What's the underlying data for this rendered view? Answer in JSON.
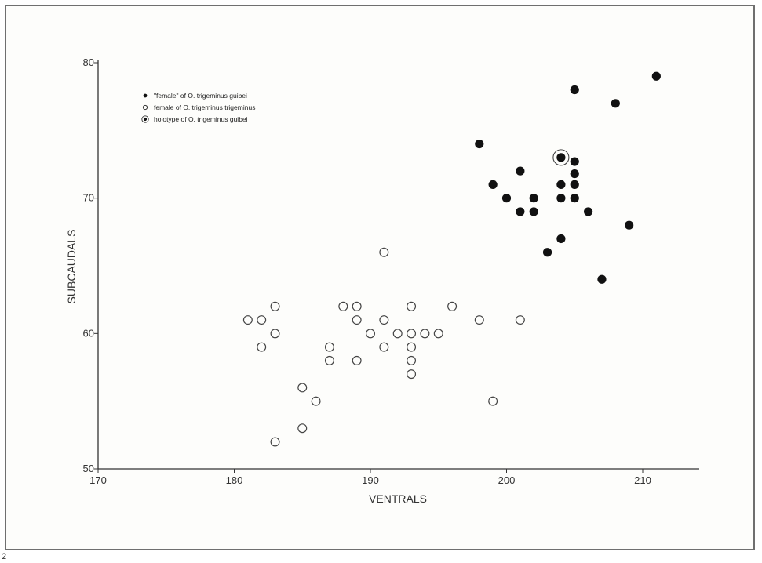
{
  "figure_number": "2",
  "chart_data": {
    "type": "scatter",
    "title": "",
    "xlabel": "VENTRALS",
    "ylabel": "SUBCAUDALS",
    "xlim": [
      170,
      215
    ],
    "ylim": [
      50,
      80
    ],
    "xticks": [
      170,
      180,
      190,
      200,
      210
    ],
    "yticks": [
      50,
      60,
      70,
      80
    ],
    "grid": false,
    "legend_position": "top-left",
    "legend": [
      {
        "symbol": "filled",
        "label": "\"female\" of O. trigeminus guibei"
      },
      {
        "symbol": "open",
        "label": "female of O. trigeminus trigeminus"
      },
      {
        "symbol": "ringed",
        "label": "holotype of O. trigeminus guibei"
      }
    ],
    "series": [
      {
        "symbol": "filled",
        "points": [
          [
            198,
            74
          ],
          [
            199,
            71
          ],
          [
            200,
            70
          ],
          [
            201,
            72
          ],
          [
            201,
            69
          ],
          [
            202,
            70
          ],
          [
            202,
            69
          ],
          [
            203,
            66
          ],
          [
            204,
            73
          ],
          [
            204,
            71
          ],
          [
            204,
            70
          ],
          [
            204,
            67
          ],
          [
            205,
            78
          ],
          [
            205,
            72.7
          ],
          [
            205,
            71.8
          ],
          [
            205,
            71
          ],
          [
            205,
            70
          ],
          [
            206,
            69
          ],
          [
            207,
            64
          ],
          [
            208,
            77
          ],
          [
            209,
            68
          ],
          [
            211,
            79
          ]
        ]
      },
      {
        "symbol": "open",
        "points": [
          [
            181,
            61
          ],
          [
            182,
            61
          ],
          [
            182,
            59
          ],
          [
            183,
            62
          ],
          [
            183,
            60
          ],
          [
            183,
            52
          ],
          [
            185,
            56
          ],
          [
            185,
            53
          ],
          [
            186,
            55
          ],
          [
            187,
            59
          ],
          [
            187,
            58
          ],
          [
            188,
            62
          ],
          [
            189,
            62
          ],
          [
            189,
            61
          ],
          [
            189,
            58
          ],
          [
            190,
            60
          ],
          [
            191,
            66
          ],
          [
            191,
            61
          ],
          [
            191,
            59
          ],
          [
            192,
            60
          ],
          [
            193,
            62
          ],
          [
            193,
            60
          ],
          [
            193,
            59
          ],
          [
            193,
            58
          ],
          [
            193,
            57
          ],
          [
            194,
            60
          ],
          [
            195,
            60
          ],
          [
            196,
            62
          ],
          [
            198,
            61
          ],
          [
            199,
            55
          ],
          [
            201,
            61
          ]
        ]
      },
      {
        "symbol": "ringed",
        "points": [
          [
            204,
            73
          ]
        ]
      }
    ]
  }
}
